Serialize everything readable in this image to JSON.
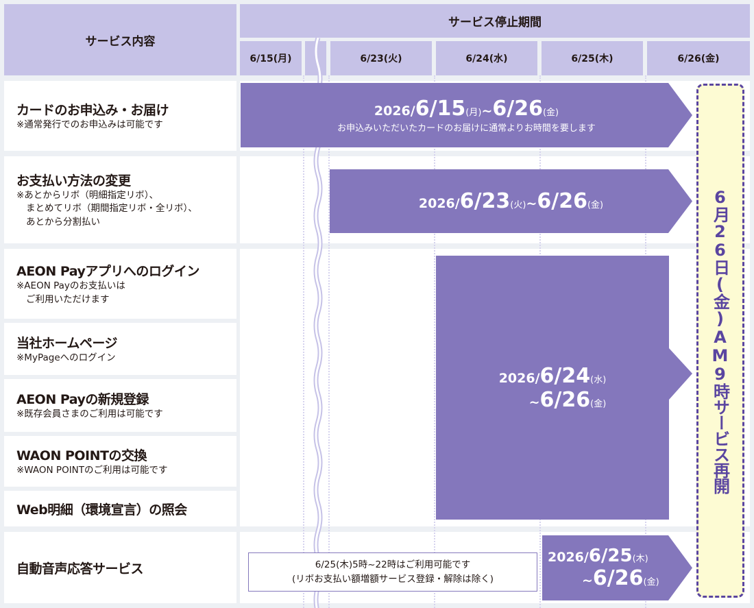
{
  "header": {
    "service_label": "サービス内容",
    "period_label": "サービス停止期間",
    "dates": [
      "6/15(月)",
      "6/23(火)",
      "6/24(水)",
      "6/25(木)",
      "6/26(金)"
    ]
  },
  "rows": [
    {
      "title": "カードのお申込み・お届け",
      "notes": [
        "※通常発行でのお申込みは可能です"
      ]
    },
    {
      "title": "お支払い方法の変更",
      "notes": [
        "※あとからリボ（明細指定リボ）、",
        "まとめてリボ（期間指定リボ・全リボ）、",
        "あとから分割払い"
      ]
    },
    {
      "title": "AEON Payアプリへのログイン",
      "notes": [
        "※AEON Payのお支払いは",
        "ご利用いただけます"
      ]
    },
    {
      "title": "当社ホームページ",
      "notes": [
        "※MyPageへのログイン"
      ]
    },
    {
      "title": "AEON Payの新規登録",
      "notes": [
        "※既存会員さまのご利用は可能です"
      ]
    },
    {
      "title": "WAON POINTの交換",
      "notes": [
        "※WAON POINTのご利用は可能です"
      ]
    },
    {
      "title": "Web明細（環境宣言）の照会",
      "notes": []
    },
    {
      "title": "自動音声応答サービス",
      "notes": []
    }
  ],
  "bars": [
    {
      "year": "2026/",
      "start": "6/15",
      "start_dow": "(月)",
      "sep": "~",
      "end": "6/26",
      "end_dow": "(金)",
      "sub": "お申込みいただいたカードのお届けに通常よりお時間を要します"
    },
    {
      "year": "2026/",
      "start": "6/23",
      "start_dow": "(火)",
      "sep": "~",
      "end": "6/26",
      "end_dow": "(金)"
    },
    {
      "year": "2026/",
      "start": "6/24",
      "start_dow": "(水)",
      "sep": "~",
      "end": "6/26",
      "end_dow": "(金)"
    },
    {
      "year": "2026/",
      "start": "6/25",
      "start_dow": "(木)",
      "sep": "~",
      "end": "6/26",
      "end_dow": "(金)"
    }
  ],
  "note": [
    "6/25(木)5時~22時はご利用可能です",
    "(リボお支払い額増額サービス登録・解除は除く)"
  ],
  "resume": "6月26日(金)AM9時サービス再開",
  "colors": {
    "bar": "#8477bc",
    "header": "#c6c2e7",
    "resume_fill": "#fdfbd3",
    "resume_border": "#5a45a0"
  }
}
